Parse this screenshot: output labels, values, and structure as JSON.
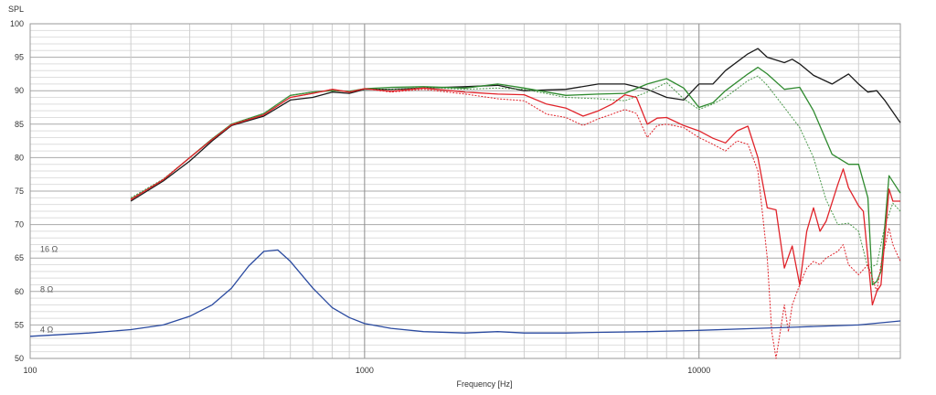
{
  "chart_data": {
    "type": "line",
    "title": "",
    "xlabel": "Frequency [Hz]",
    "ylabel": "SPL",
    "x_scale": "log",
    "xlim": [
      100,
      40000
    ],
    "ylim": [
      50,
      100
    ],
    "grid": true,
    "x_ticks": [
      {
        "value": 100,
        "label": "100"
      },
      {
        "value": 1000,
        "label": "1000"
      },
      {
        "value": 10000,
        "label": "10000"
      }
    ],
    "y_ticks": [
      50,
      55,
      60,
      65,
      70,
      75,
      80,
      85,
      90,
      95,
      100
    ],
    "impedance_labels": [
      {
        "label": "16 Ω",
        "y": 66.3
      },
      {
        "label": "8 Ω",
        "y": 60.3
      },
      {
        "label": "4 Ω",
        "y": 54.3
      }
    ],
    "series": [
      {
        "color": "#1a1a1a",
        "dashed": false,
        "points": [
          [
            200,
            73.5
          ],
          [
            250,
            76.5
          ],
          [
            300,
            79.5
          ],
          [
            350,
            82.5
          ],
          [
            400,
            84.8
          ],
          [
            500,
            86.2
          ],
          [
            600,
            88.6
          ],
          [
            700,
            89
          ],
          [
            800,
            89.8
          ],
          [
            900,
            89.6
          ],
          [
            1000,
            90.2
          ],
          [
            1200,
            90.2
          ],
          [
            1500,
            90.4
          ],
          [
            2000,
            90.6
          ],
          [
            2500,
            90.8
          ],
          [
            3000,
            90
          ],
          [
            4000,
            90.2
          ],
          [
            5000,
            91
          ],
          [
            6000,
            91
          ],
          [
            7000,
            90.2
          ],
          [
            8000,
            89
          ],
          [
            9000,
            88.6
          ],
          [
            10000,
            91
          ],
          [
            11000,
            91
          ],
          [
            12000,
            93
          ],
          [
            14000,
            95.5
          ],
          [
            15000,
            96.3
          ],
          [
            16000,
            95
          ],
          [
            18000,
            94.2
          ],
          [
            19000,
            94.7
          ],
          [
            20000,
            94
          ],
          [
            22000,
            92.3
          ],
          [
            25000,
            91
          ],
          [
            28000,
            92.5
          ],
          [
            30000,
            91
          ],
          [
            32000,
            89.8
          ],
          [
            34000,
            90
          ],
          [
            36000,
            88.5
          ],
          [
            40000,
            85.2
          ]
        ]
      },
      {
        "color": "#2f8a2f",
        "dashed": false,
        "points": [
          [
            200,
            73.8
          ],
          [
            250,
            76.7
          ],
          [
            300,
            80
          ],
          [
            350,
            82.8
          ],
          [
            400,
            85
          ],
          [
            500,
            86.6
          ],
          [
            600,
            89.3
          ],
          [
            700,
            89.8
          ],
          [
            800,
            90
          ],
          [
            900,
            89.9
          ],
          [
            1000,
            90.3
          ],
          [
            1200,
            90.5
          ],
          [
            1500,
            90.6
          ],
          [
            2000,
            90.4
          ],
          [
            2500,
            91
          ],
          [
            3000,
            90.4
          ],
          [
            4000,
            89.3
          ],
          [
            5000,
            89.5
          ],
          [
            6000,
            89.6
          ],
          [
            7000,
            91
          ],
          [
            8000,
            91.8
          ],
          [
            9000,
            90.4
          ],
          [
            10000,
            87.5
          ],
          [
            11000,
            88.2
          ],
          [
            12000,
            90
          ],
          [
            14000,
            92.5
          ],
          [
            15000,
            93.5
          ],
          [
            16000,
            92.5
          ],
          [
            18000,
            90.2
          ],
          [
            20000,
            90.5
          ],
          [
            22000,
            87
          ],
          [
            25000,
            80.5
          ],
          [
            28000,
            79
          ],
          [
            30000,
            79
          ],
          [
            32000,
            74
          ],
          [
            33000,
            61
          ],
          [
            34000,
            61.5
          ],
          [
            35000,
            63
          ],
          [
            37000,
            77.3
          ],
          [
            40000,
            74.7
          ]
        ]
      },
      {
        "color": "#4e9a4e",
        "dashed": true,
        "points": [
          [
            200,
            74
          ],
          [
            250,
            76.8
          ],
          [
            300,
            80
          ],
          [
            350,
            82.8
          ],
          [
            400,
            85
          ],
          [
            500,
            86.6
          ],
          [
            600,
            89.3
          ],
          [
            700,
            89.8
          ],
          [
            800,
            90
          ],
          [
            900,
            89.9
          ],
          [
            1000,
            90.2
          ],
          [
            1200,
            90.2
          ],
          [
            1500,
            90.5
          ],
          [
            2000,
            90.2
          ],
          [
            2500,
            90.4
          ],
          [
            3000,
            90.2
          ],
          [
            4000,
            89
          ],
          [
            5000,
            88.8
          ],
          [
            6000,
            88.5
          ],
          [
            7000,
            89.8
          ],
          [
            8000,
            91.2
          ],
          [
            9000,
            88.8
          ],
          [
            10000,
            87.2
          ],
          [
            11000,
            88
          ],
          [
            12000,
            89
          ],
          [
            14000,
            91.5
          ],
          [
            15000,
            92.2
          ],
          [
            16000,
            90.8
          ],
          [
            18000,
            87.5
          ],
          [
            20000,
            84.5
          ],
          [
            22000,
            80
          ],
          [
            24000,
            73.7
          ],
          [
            26000,
            70
          ],
          [
            28000,
            70.2
          ],
          [
            30000,
            69
          ],
          [
            32000,
            63.5
          ],
          [
            34000,
            64
          ],
          [
            36000,
            70
          ],
          [
            38000,
            73.2
          ],
          [
            40000,
            72
          ]
        ]
      },
      {
        "color": "#e0232a",
        "dashed": false,
        "points": [
          [
            200,
            73.7
          ],
          [
            250,
            76.7
          ],
          [
            300,
            80
          ],
          [
            350,
            82.7
          ],
          [
            400,
            84.9
          ],
          [
            500,
            86.4
          ],
          [
            600,
            89
          ],
          [
            700,
            89.6
          ],
          [
            800,
            90.2
          ],
          [
            900,
            89.8
          ],
          [
            1000,
            90.3
          ],
          [
            1200,
            89.9
          ],
          [
            1500,
            90.4
          ],
          [
            2000,
            89.8
          ],
          [
            2500,
            89.5
          ],
          [
            3000,
            89.4
          ],
          [
            3500,
            88
          ],
          [
            4000,
            87.4
          ],
          [
            4500,
            86.2
          ],
          [
            5000,
            87
          ],
          [
            5500,
            88
          ],
          [
            6000,
            89.4
          ],
          [
            6500,
            89
          ],
          [
            7000,
            85
          ],
          [
            7500,
            85.9
          ],
          [
            8000,
            86
          ],
          [
            9000,
            84.8
          ],
          [
            10000,
            84
          ],
          [
            11000,
            82.9
          ],
          [
            12000,
            82.2
          ],
          [
            13000,
            84
          ],
          [
            14000,
            84.7
          ],
          [
            15000,
            80
          ],
          [
            16000,
            72.5
          ],
          [
            17000,
            72.2
          ],
          [
            18000,
            63.5
          ],
          [
            19000,
            66.8
          ],
          [
            20000,
            61
          ],
          [
            21000,
            69
          ],
          [
            22000,
            72.5
          ],
          [
            23000,
            69
          ],
          [
            24000,
            70.5
          ],
          [
            26000,
            76
          ],
          [
            27000,
            78.3
          ],
          [
            28000,
            75.5
          ],
          [
            30000,
            72.8
          ],
          [
            31000,
            72
          ],
          [
            32000,
            65
          ],
          [
            33000,
            58
          ],
          [
            34000,
            60
          ],
          [
            35000,
            61
          ],
          [
            37000,
            75.3
          ],
          [
            38000,
            73.5
          ],
          [
            40000,
            73.5
          ]
        ]
      },
      {
        "color": "#e0232a",
        "dashed": true,
        "points": [
          [
            200,
            73.8
          ],
          [
            250,
            76.7
          ],
          [
            300,
            80
          ],
          [
            350,
            82.7
          ],
          [
            400,
            84.9
          ],
          [
            500,
            86.4
          ],
          [
            600,
            89
          ],
          [
            700,
            89.6
          ],
          [
            800,
            90.2
          ],
          [
            900,
            89.8
          ],
          [
            1000,
            90.3
          ],
          [
            1200,
            89.8
          ],
          [
            1500,
            90.2
          ],
          [
            2000,
            89.5
          ],
          [
            2500,
            88.8
          ],
          [
            3000,
            88.5
          ],
          [
            3500,
            86.5
          ],
          [
            4000,
            86
          ],
          [
            4500,
            84.8
          ],
          [
            5000,
            85.8
          ],
          [
            5500,
            86.5
          ],
          [
            6000,
            87.2
          ],
          [
            6500,
            86.6
          ],
          [
            7000,
            83
          ],
          [
            7500,
            84.8
          ],
          [
            8000,
            85
          ],
          [
            9000,
            84.5
          ],
          [
            10000,
            83
          ],
          [
            11000,
            82
          ],
          [
            12000,
            81
          ],
          [
            13000,
            82.5
          ],
          [
            14000,
            82
          ],
          [
            15000,
            78
          ],
          [
            16000,
            65
          ],
          [
            16500,
            54
          ],
          [
            17000,
            50
          ],
          [
            17500,
            54
          ],
          [
            18000,
            58
          ],
          [
            18500,
            54
          ],
          [
            19000,
            58
          ],
          [
            20000,
            61
          ],
          [
            21000,
            63.5
          ],
          [
            22000,
            64.5
          ],
          [
            23000,
            64
          ],
          [
            24000,
            65
          ],
          [
            26000,
            66
          ],
          [
            27000,
            67
          ],
          [
            28000,
            64
          ],
          [
            30000,
            62.5
          ],
          [
            32000,
            64
          ],
          [
            34000,
            60
          ],
          [
            35000,
            64
          ],
          [
            37000,
            69.5
          ],
          [
            38000,
            67
          ],
          [
            40000,
            64.5
          ]
        ]
      },
      {
        "color": "#2a4aa0",
        "dashed": false,
        "points": [
          [
            100,
            53.3
          ],
          [
            150,
            53.8
          ],
          [
            200,
            54.3
          ],
          [
            250,
            55
          ],
          [
            300,
            56.3
          ],
          [
            350,
            58
          ],
          [
            400,
            60.5
          ],
          [
            450,
            63.8
          ],
          [
            500,
            66
          ],
          [
            550,
            66.2
          ],
          [
            600,
            64.5
          ],
          [
            700,
            60.5
          ],
          [
            800,
            57.6
          ],
          [
            900,
            56.1
          ],
          [
            1000,
            55.2
          ],
          [
            1200,
            54.5
          ],
          [
            1500,
            54
          ],
          [
            2000,
            53.8
          ],
          [
            2500,
            54
          ],
          [
            3000,
            53.8
          ],
          [
            4000,
            53.8
          ],
          [
            5000,
            53.9
          ],
          [
            7000,
            54
          ],
          [
            10000,
            54.2
          ],
          [
            15000,
            54.5
          ],
          [
            20000,
            54.7
          ],
          [
            30000,
            55
          ],
          [
            40000,
            55.6
          ]
        ]
      }
    ]
  }
}
